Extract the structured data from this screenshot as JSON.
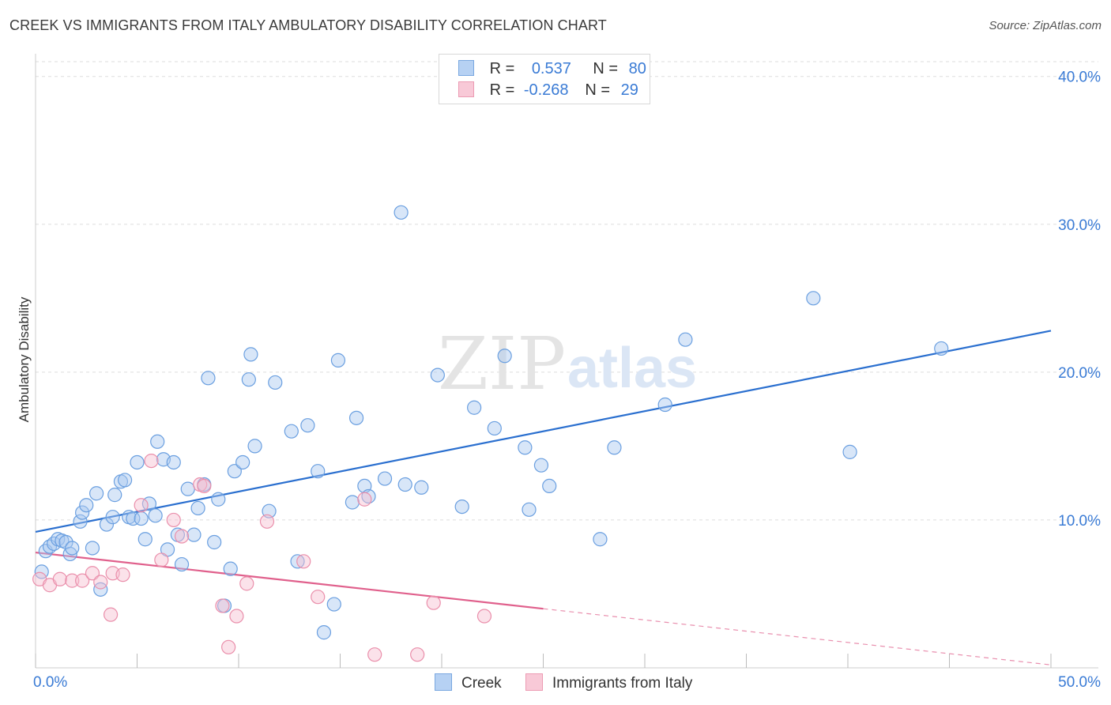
{
  "header": {
    "title": "CREEK VS IMMIGRANTS FROM ITALY AMBULATORY DISABILITY CORRELATION CHART",
    "source": "Source: ZipAtlas.com"
  },
  "watermark": {
    "zip": "ZIP",
    "atlas": "atlas"
  },
  "legend": {
    "rows": [
      {
        "r_label": "R =",
        "r_value": "0.537",
        "n_label": "N =",
        "n_value": "80"
      },
      {
        "r_label": "R =",
        "r_value": "-0.268",
        "n_label": "N =",
        "n_value": "29"
      }
    ]
  },
  "bottom_legend": {
    "creek": "Creek",
    "italy": "Immigrants from Italy"
  },
  "colors": {
    "creek_fill": "#a9c8f0",
    "creek_stroke": "#6a9fe0",
    "creek_line": "#2a6fcf",
    "italy_fill": "#f7bfd0",
    "italy_stroke": "#ea8fab",
    "italy_line": "#e0608c",
    "axis_label": "#3a7bd5",
    "grid": "#dddddd"
  },
  "chart_data": {
    "type": "scatter",
    "title": "CREEK VS IMMIGRANTS FROM ITALY AMBULATORY DISABILITY CORRELATION CHART",
    "xlabel": "",
    "ylabel": "Ambulatory Disability",
    "xlim": [
      0,
      50
    ],
    "ylim": [
      0,
      41
    ],
    "x_tick_labels": [
      "0.0%",
      "50.0%"
    ],
    "y_ticks": [
      10,
      20,
      30,
      40
    ],
    "y_tick_labels": [
      "10.0%",
      "20.0%",
      "30.0%",
      "40.0%"
    ],
    "grid": true,
    "legend_position": "top-center",
    "series": [
      {
        "name": "Creek",
        "R": 0.537,
        "N": 80,
        "trend": {
          "x": [
            0,
            50
          ],
          "y": [
            9.2,
            22.8
          ]
        },
        "points": [
          [
            0.3,
            6.5
          ],
          [
            0.5,
            7.9
          ],
          [
            0.7,
            8.2
          ],
          [
            0.9,
            8.4
          ],
          [
            1.1,
            8.7
          ],
          [
            1.3,
            8.6
          ],
          [
            1.5,
            8.5
          ],
          [
            1.7,
            7.7
          ],
          [
            1.8,
            8.1
          ],
          [
            2.2,
            9.9
          ],
          [
            2.3,
            10.5
          ],
          [
            2.5,
            11.0
          ],
          [
            2.8,
            8.1
          ],
          [
            3.0,
            11.8
          ],
          [
            3.2,
            5.3
          ],
          [
            3.5,
            9.7
          ],
          [
            3.8,
            10.2
          ],
          [
            3.9,
            11.7
          ],
          [
            4.2,
            12.6
          ],
          [
            4.4,
            12.7
          ],
          [
            4.6,
            10.2
          ],
          [
            4.8,
            10.1
          ],
          [
            5.0,
            13.9
          ],
          [
            5.2,
            10.1
          ],
          [
            5.4,
            8.7
          ],
          [
            5.6,
            11.1
          ],
          [
            5.9,
            10.3
          ],
          [
            6.0,
            15.3
          ],
          [
            6.3,
            14.1
          ],
          [
            6.5,
            8.0
          ],
          [
            6.8,
            13.9
          ],
          [
            7.0,
            9.0
          ],
          [
            7.2,
            7.0
          ],
          [
            7.5,
            12.1
          ],
          [
            7.8,
            9.0
          ],
          [
            8.0,
            10.8
          ],
          [
            8.3,
            12.4
          ],
          [
            8.5,
            19.6
          ],
          [
            8.8,
            8.5
          ],
          [
            9.0,
            11.4
          ],
          [
            9.3,
            4.2
          ],
          [
            9.6,
            6.7
          ],
          [
            9.8,
            13.3
          ],
          [
            10.2,
            13.9
          ],
          [
            10.5,
            19.5
          ],
          [
            10.6,
            21.2
          ],
          [
            10.8,
            15.0
          ],
          [
            11.5,
            10.6
          ],
          [
            11.8,
            19.3
          ],
          [
            12.6,
            16.0
          ],
          [
            12.9,
            7.2
          ],
          [
            13.4,
            16.4
          ],
          [
            13.9,
            13.3
          ],
          [
            14.2,
            2.4
          ],
          [
            14.7,
            4.3
          ],
          [
            14.9,
            20.8
          ],
          [
            15.6,
            11.2
          ],
          [
            15.8,
            16.9
          ],
          [
            16.2,
            12.3
          ],
          [
            16.4,
            11.6
          ],
          [
            17.2,
            12.8
          ],
          [
            18.0,
            30.8
          ],
          [
            18.2,
            12.4
          ],
          [
            19.0,
            12.2
          ],
          [
            19.8,
            19.8
          ],
          [
            21.0,
            10.9
          ],
          [
            21.6,
            17.6
          ],
          [
            22.6,
            16.2
          ],
          [
            23.1,
            21.1
          ],
          [
            24.1,
            14.9
          ],
          [
            24.3,
            10.7
          ],
          [
            24.9,
            13.7
          ],
          [
            25.3,
            12.3
          ],
          [
            27.8,
            8.7
          ],
          [
            28.5,
            14.9
          ],
          [
            31.0,
            17.8
          ],
          [
            32.0,
            22.2
          ],
          [
            38.3,
            25.0
          ],
          [
            40.1,
            14.6
          ],
          [
            44.6,
            21.6
          ]
        ]
      },
      {
        "name": "Immigrants from Italy",
        "R": -0.268,
        "N": 29,
        "trend": {
          "x": [
            0,
            25
          ],
          "y": [
            7.8,
            4.0
          ]
        },
        "trend_dashed": {
          "x": [
            25,
            50
          ],
          "y": [
            4.0,
            0.2
          ]
        },
        "points": [
          [
            0.2,
            6.0
          ],
          [
            0.7,
            5.6
          ],
          [
            1.2,
            6.0
          ],
          [
            1.8,
            5.9
          ],
          [
            2.3,
            5.9
          ],
          [
            2.8,
            6.4
          ],
          [
            3.2,
            5.8
          ],
          [
            3.7,
            3.6
          ],
          [
            3.8,
            6.4
          ],
          [
            4.3,
            6.3
          ],
          [
            5.2,
            11.0
          ],
          [
            5.7,
            14.0
          ],
          [
            6.2,
            7.3
          ],
          [
            6.8,
            10.0
          ],
          [
            7.2,
            8.9
          ],
          [
            8.1,
            12.4
          ],
          [
            8.3,
            12.3
          ],
          [
            9.2,
            4.2
          ],
          [
            9.5,
            1.4
          ],
          [
            9.9,
            3.5
          ],
          [
            10.4,
            5.7
          ],
          [
            11.4,
            9.9
          ],
          [
            13.2,
            7.2
          ],
          [
            13.9,
            4.8
          ],
          [
            16.2,
            11.4
          ],
          [
            16.7,
            0.9
          ],
          [
            18.8,
            0.9
          ],
          [
            19.6,
            4.4
          ],
          [
            22.1,
            3.5
          ]
        ]
      }
    ]
  }
}
